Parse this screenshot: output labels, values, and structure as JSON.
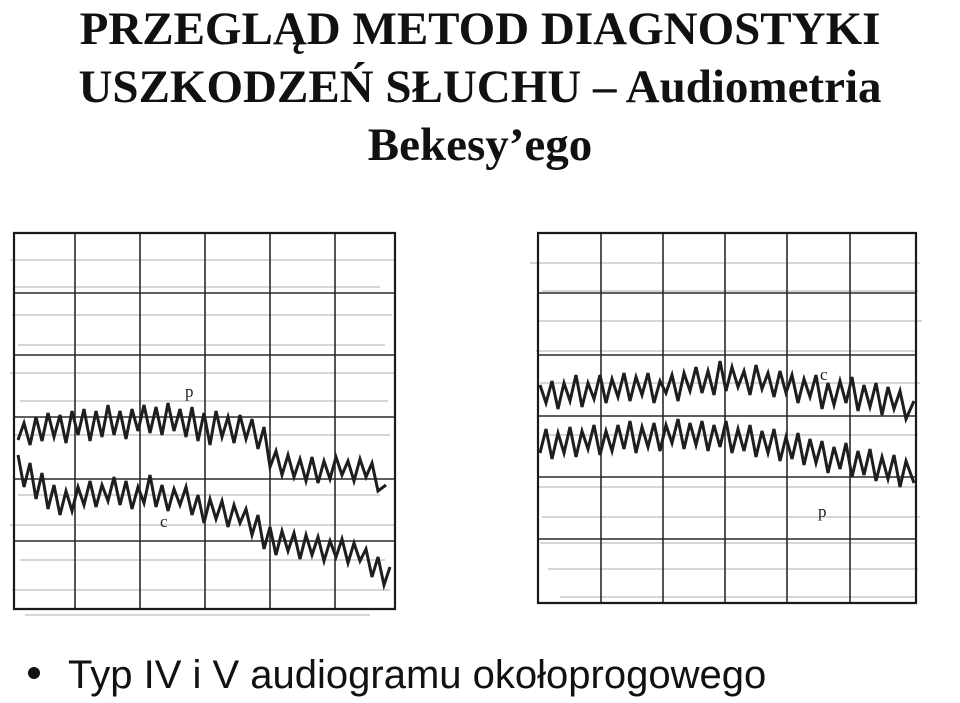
{
  "slide": {
    "title_lines": [
      "PRZEGLĄD METOD DIAGNOSTYKI",
      "USZKODZEŃ SŁUCHU – Audiometria",
      "Bekesy’ego"
    ],
    "bullet": "Typ IV i V audiogramu okołoprogowego"
  },
  "figures": [
    {
      "name": "audiogram-type-iv",
      "curve_labels": [
        "p",
        "c"
      ],
      "grid_columns": 6,
      "grid_rows": 6
    },
    {
      "name": "audiogram-type-v",
      "curve_labels": [
        "c",
        "p"
      ],
      "grid_columns": 6,
      "grid_rows": 6
    }
  ],
  "colors": {
    "text": "#111111",
    "trace": "#1e1e1e",
    "grid": "#2a2a2a",
    "background": "#ffffff"
  }
}
